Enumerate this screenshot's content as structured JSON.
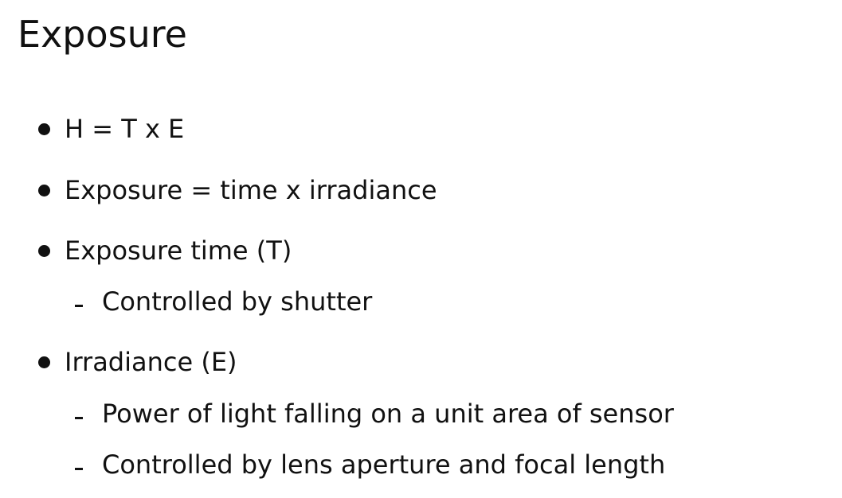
{
  "slide": {
    "title": "Exposure",
    "bullets": [
      {
        "text": "H = T x E",
        "subitems": []
      },
      {
        "text": "Exposure = time x irradiance",
        "subitems": []
      },
      {
        "text": "Exposure time (T)",
        "subitems": [
          "Controlled by shutter"
        ]
      },
      {
        "text": "Irradiance (E)",
        "subitems": [
          "Power of light falling on a unit area of sensor",
          "Controlled by lens aperture and focal length"
        ]
      }
    ]
  }
}
